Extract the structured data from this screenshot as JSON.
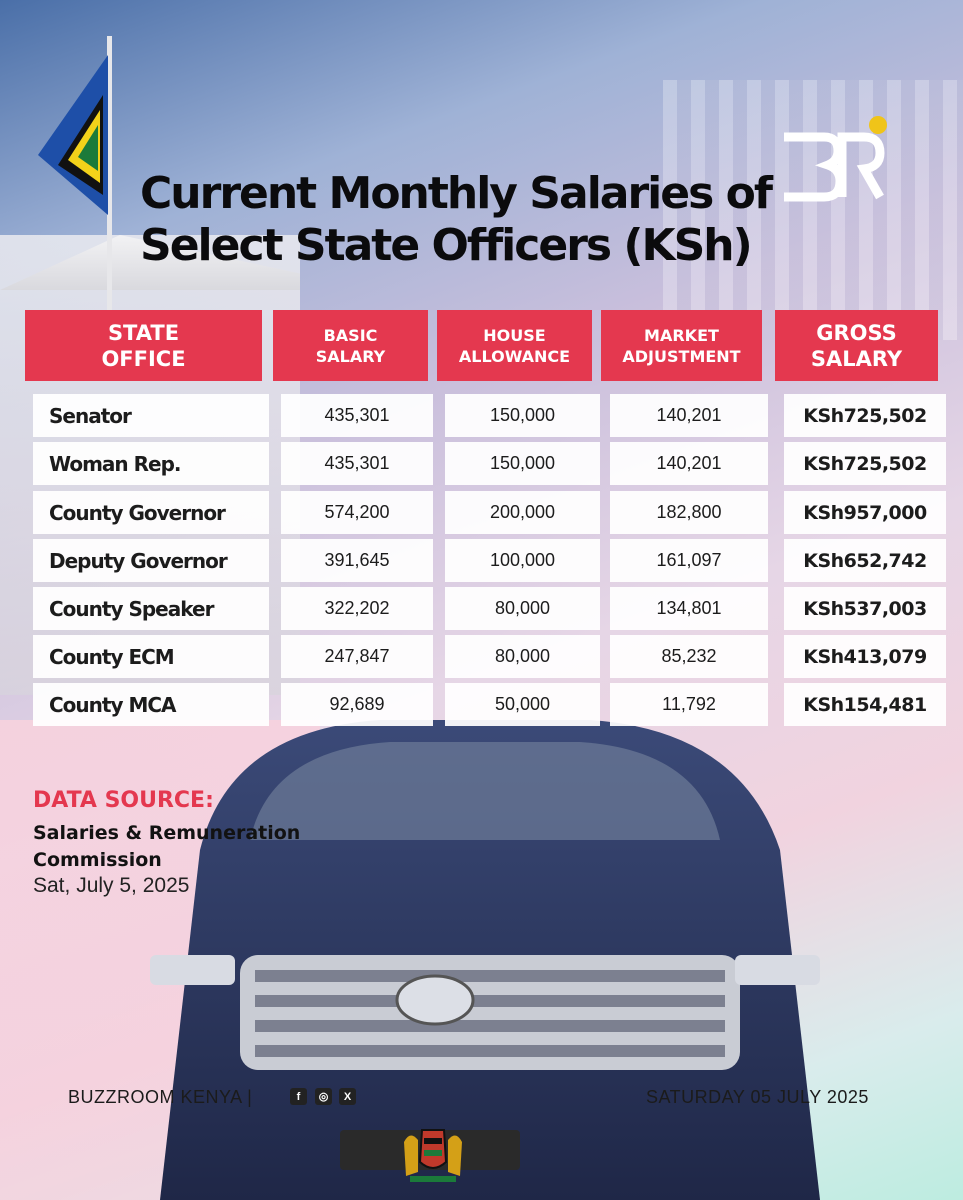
{
  "title": {
    "line1": "Current Monthly Salaries of",
    "line2": "Select State Officers (KSh)"
  },
  "brand": {
    "logo_text": "BR",
    "accent": "#f0c419"
  },
  "table": {
    "headers": {
      "office": "STATE\nOFFICE",
      "basic": "BASIC\nSALARY",
      "house": "HOUSE\nALLOWANCE",
      "market": "MARKET\nADJUSTMENT",
      "gross": "GROSS\nSALARY"
    },
    "rows": [
      {
        "office": "Senator",
        "basic": "435,301",
        "house": "150,000",
        "market": "140,201",
        "gross": "KSh725,502"
      },
      {
        "office": "Woman Rep.",
        "basic": "435,301",
        "house": "150,000",
        "market": "140,201",
        "gross": "KSh725,502"
      },
      {
        "office": "County Governor",
        "basic": "574,200",
        "house": "200,000",
        "market": "182,800",
        "gross": "KSh957,000"
      },
      {
        "office": "Deputy Governor",
        "basic": "391,645",
        "house": "100,000",
        "market": "161,097",
        "gross": "KSh652,742"
      },
      {
        "office": "County Speaker",
        "basic": "322,202",
        "house": "80,000",
        "market": "134,801",
        "gross": "KSh537,003"
      },
      {
        "office": "County ECM",
        "basic": "247,847",
        "house": "80,000",
        "market": "85,232",
        "gross": "KSh413,079"
      },
      {
        "office": "County MCA",
        "basic": "92,689",
        "house": "50,000",
        "market": "11,792",
        "gross": "KSh154,481"
      }
    ]
  },
  "data_source": {
    "label": "DATA SOURCE:",
    "source": "Salaries & Remuneration Commission",
    "date": "Sat, July 5, 2025"
  },
  "footer": {
    "left": "BUZZROOM KENYA |",
    "right": "SATURDAY 05 JULY 2025",
    "social": [
      {
        "name": "facebook-icon",
        "glyph": "f"
      },
      {
        "name": "instagram-icon",
        "glyph": "◎"
      },
      {
        "name": "x-icon",
        "glyph": "X"
      }
    ]
  },
  "colors": {
    "header_red": "#e4384f",
    "text_dark": "#0b0b0d"
  }
}
